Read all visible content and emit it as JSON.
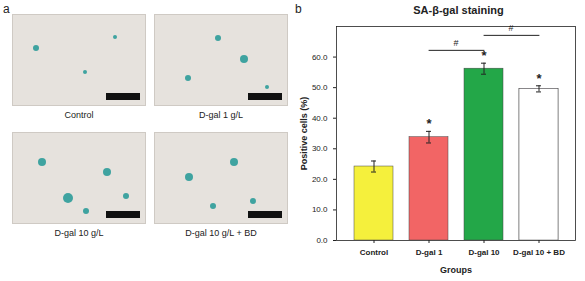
{
  "panel_labels": [
    "a",
    "b"
  ],
  "image_captions": [
    "Control",
    "D-gal 1 g/L",
    "D-gal 10 g/L",
    "D-gal 10 g/L + BD"
  ],
  "chart_data": {
    "type": "bar",
    "title": "SA-β-gal staining",
    "xlabel": "Groups",
    "ylabel": "Positive cells (%)",
    "categories": [
      "Control",
      "D-gal 1",
      "D-gal 10",
      "D-gal 10 + BD"
    ],
    "values": [
      24.2,
      33.8,
      56.2,
      49.6
    ],
    "errors": [
      1.8,
      1.9,
      1.8,
      1.0
    ],
    "colors": [
      "#f5f03c",
      "#f26565",
      "#23a748",
      "#7b4d8c"
    ],
    "ylim": [
      0,
      70
    ],
    "yticks": [
      {
        "value": 0,
        "label": "0.0"
      },
      {
        "value": 10,
        "label": "10.0"
      },
      {
        "value": 20,
        "label": "20.0"
      },
      {
        "value": 30,
        "label": "30.0"
      },
      {
        "value": 40,
        "label": "40.0"
      },
      {
        "value": 50,
        "label": "50.0"
      },
      {
        "value": 60,
        "label": "60.0"
      }
    ],
    "grid": false,
    "annotations": [
      {
        "category": "D-gal 1",
        "text": "*"
      },
      {
        "category": "D-gal 10",
        "text": "*"
      },
      {
        "category": "D-gal 10 + BD",
        "text": "*"
      }
    ],
    "comparisons": [
      {
        "from": "D-gal 1",
        "to": "D-gal 10",
        "text": "#"
      },
      {
        "from": "D-gal 10",
        "to": "D-gal 10 + BD",
        "text": "#"
      }
    ]
  }
}
